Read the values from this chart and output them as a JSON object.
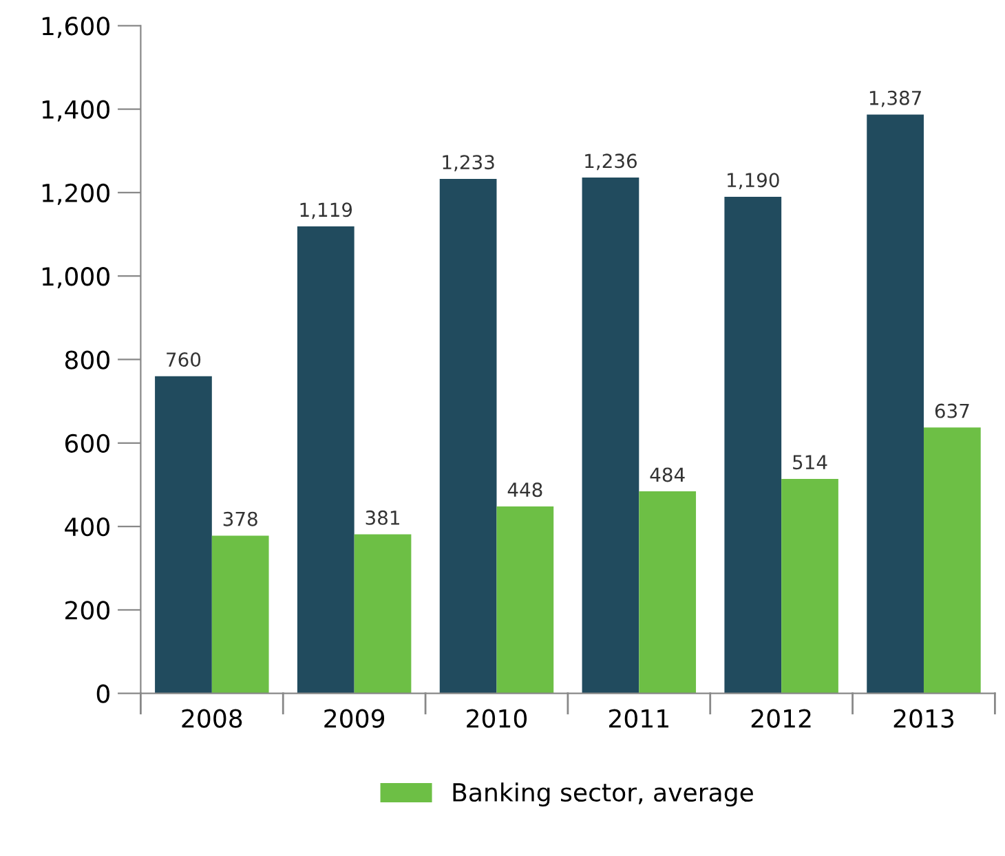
{
  "chart_data": {
    "type": "bar",
    "categories": [
      "2008",
      "2009",
      "2010",
      "2011",
      "2012",
      "2013"
    ],
    "series": [
      {
        "color": "#214b5e",
        "values": [
          760,
          1119,
          1233,
          1236,
          1190,
          1387
        ],
        "value_labels": [
          "760",
          "1,119",
          "1,233",
          "1,236",
          "1,190",
          "1,387"
        ]
      },
      {
        "name": "Banking sector, average",
        "color": "#6dbf45",
        "values": [
          378,
          381,
          448,
          484,
          514,
          637
        ],
        "value_labels": [
          "378",
          "381",
          "448",
          "484",
          "514",
          "637"
        ]
      }
    ],
    "ylim": [
      0,
      1600
    ],
    "yticks": [
      {
        "value": 0,
        "label": "0"
      },
      {
        "value": 200,
        "label": "200"
      },
      {
        "value": 400,
        "label": "400"
      },
      {
        "value": 600,
        "label": "600"
      },
      {
        "value": 800,
        "label": "800"
      },
      {
        "value": 1000,
        "label": "1,000"
      },
      {
        "value": 1200,
        "label": "1,200"
      },
      {
        "value": 1400,
        "label": "1,400"
      },
      {
        "value": 1600,
        "label": "1,600"
      }
    ],
    "grid": false,
    "legend": "bottom"
  }
}
